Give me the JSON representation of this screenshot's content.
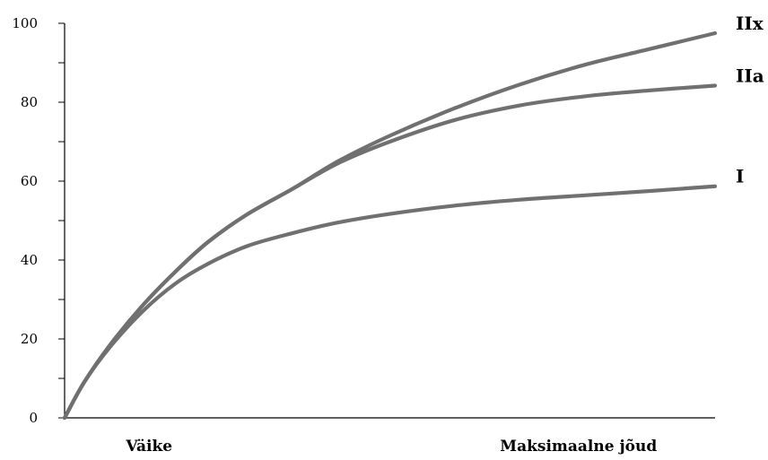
{
  "chart_data": {
    "type": "line",
    "title": "",
    "xlabel": "",
    "ylabel": "",
    "ylim": [
      0,
      100
    ],
    "y_ticks": [
      0,
      20,
      40,
      60,
      80,
      100
    ],
    "y_minor_step": 10,
    "xlim": [
      0,
      1
    ],
    "x_category_labels": [
      {
        "label": "Väike",
        "x": 0.13
      },
      {
        "label": "Maksimaalne jõud",
        "x": 0.79
      }
    ],
    "grid": false,
    "line_color": "#707070",
    "series": [
      {
        "name": "I",
        "points": [
          [
            0,
            0
          ],
          [
            0.03,
            9
          ],
          [
            0.07,
            18
          ],
          [
            0.12,
            27
          ],
          [
            0.17,
            34
          ],
          [
            0.22,
            39
          ],
          [
            0.28,
            43.5
          ],
          [
            0.35,
            46.8
          ],
          [
            0.42,
            49.5
          ],
          [
            0.5,
            51.7
          ],
          [
            0.6,
            53.8
          ],
          [
            0.7,
            55.3
          ],
          [
            0.8,
            56.4
          ],
          [
            0.9,
            57.5
          ],
          [
            1.0,
            58.7
          ]
        ]
      },
      {
        "name": "IIa",
        "points": [
          [
            0,
            0
          ],
          [
            0.03,
            9
          ],
          [
            0.07,
            18.5
          ],
          [
            0.12,
            28.5
          ],
          [
            0.17,
            37
          ],
          [
            0.22,
            44.5
          ],
          [
            0.28,
            51.5
          ],
          [
            0.35,
            58
          ],
          [
            0.42,
            64.5
          ],
          [
            0.5,
            70
          ],
          [
            0.6,
            75.5
          ],
          [
            0.7,
            79.2
          ],
          [
            0.8,
            81.5
          ],
          [
            0.9,
            83
          ],
          [
            1.0,
            84.2
          ]
        ]
      },
      {
        "name": "IIx",
        "points": [
          [
            0,
            0
          ],
          [
            0.03,
            9
          ],
          [
            0.07,
            18.5
          ],
          [
            0.12,
            28.5
          ],
          [
            0.17,
            37
          ],
          [
            0.22,
            44.5
          ],
          [
            0.28,
            51.5
          ],
          [
            0.35,
            58
          ],
          [
            0.42,
            65
          ],
          [
            0.5,
            71.5
          ],
          [
            0.6,
            78.5
          ],
          [
            0.7,
            84.5
          ],
          [
            0.8,
            89.5
          ],
          [
            0.9,
            93.5
          ],
          [
            1.0,
            97.5
          ]
        ]
      }
    ]
  }
}
